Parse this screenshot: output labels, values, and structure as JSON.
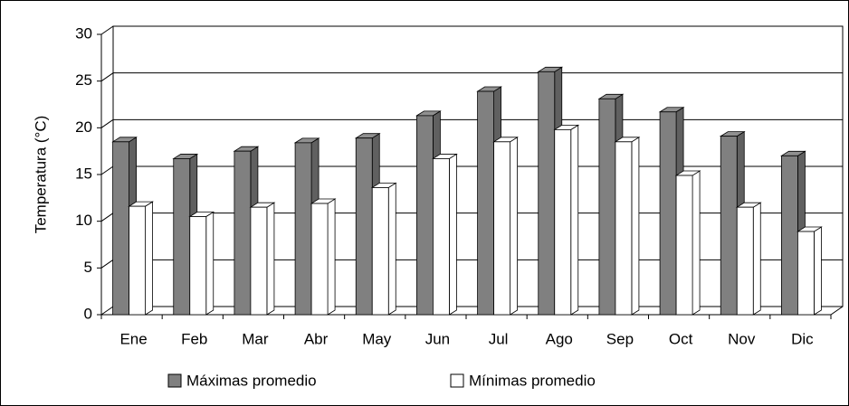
{
  "chart_data": {
    "type": "bar3d",
    "y_label": "Temperatura (°C)",
    "categories": [
      "Ene",
      "Feb",
      "Mar",
      "Abr",
      "May",
      "Jun",
      "Jul",
      "Ago",
      "Sep",
      "Oct",
      "Nov",
      "Dic"
    ],
    "series": [
      {
        "name": "Máximas promedio",
        "color": "#808080",
        "values": [
          18.5,
          16.7,
          17.5,
          18.4,
          18.9,
          21.3,
          23.9,
          26.0,
          23.1,
          21.7,
          19.1,
          17.0
        ]
      },
      {
        "name": "Mínimas promedio",
        "color": "#ffffff",
        "values": [
          11.6,
          10.5,
          11.5,
          11.9,
          13.6,
          16.7,
          18.5,
          19.8,
          18.5,
          14.9,
          11.5,
          8.9
        ]
      }
    ],
    "ylim": [
      0,
      30
    ],
    "yticks": [
      0,
      5,
      10,
      15,
      20,
      25,
      30
    ],
    "grid": true,
    "legend": "bottom"
  }
}
